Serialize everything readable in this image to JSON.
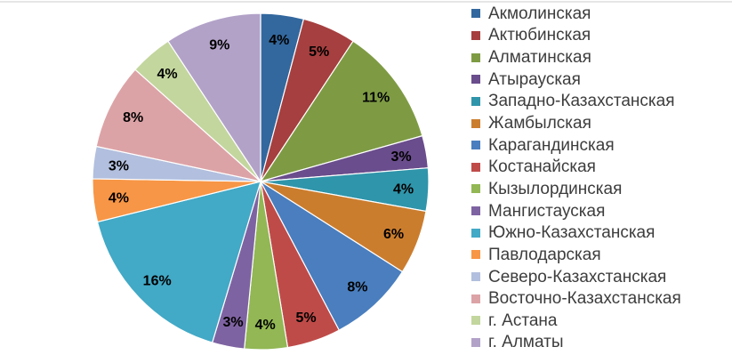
{
  "page": {
    "background": "#ffffff",
    "top_rule_color": "#e6e6e6"
  },
  "chart_data": {
    "type": "pie",
    "title": "",
    "legend_position": "right",
    "start_angle_deg": 0,
    "direction": "clockwise",
    "label_placement": "inside-end",
    "label_color": "#000000",
    "slice_border_color": "#ffffff",
    "categories": [
      "Акмолинская",
      "Актюбинская",
      "Алматинская",
      "Атырауская",
      "Западно-Казахстанская",
      "Жамбылская",
      "Карагандинская",
      "Костанайская",
      "Кызылординская",
      "Мангистауская",
      "Южно-Казахстанская",
      "Павлодарская",
      "Северо-Казахстанская",
      "Восточно-Казахстанская",
      "г. Астана",
      "г. Алматы"
    ],
    "values": [
      4,
      5,
      11,
      3,
      4,
      6,
      8,
      5,
      4,
      3,
      16,
      4,
      3,
      8,
      4,
      9
    ],
    "percent_labels": [
      "4%",
      "5%",
      "11%",
      "3%",
      "4%",
      "6%",
      "8%",
      "5%",
      "4%",
      "3%",
      "16%",
      "4%",
      "3%",
      "8%",
      "4%",
      "9%"
    ],
    "colors": [
      "#33689E",
      "#A63F3F",
      "#7E9B44",
      "#6A4D8C",
      "#2F95AA",
      "#CB7D2E",
      "#4A7EBE",
      "#BF4B49",
      "#92B754",
      "#7E63A2",
      "#42A9C6",
      "#F79646",
      "#B2BFDE",
      "#DCA3A6",
      "#C3D69E",
      "#B2A2C8"
    ]
  }
}
